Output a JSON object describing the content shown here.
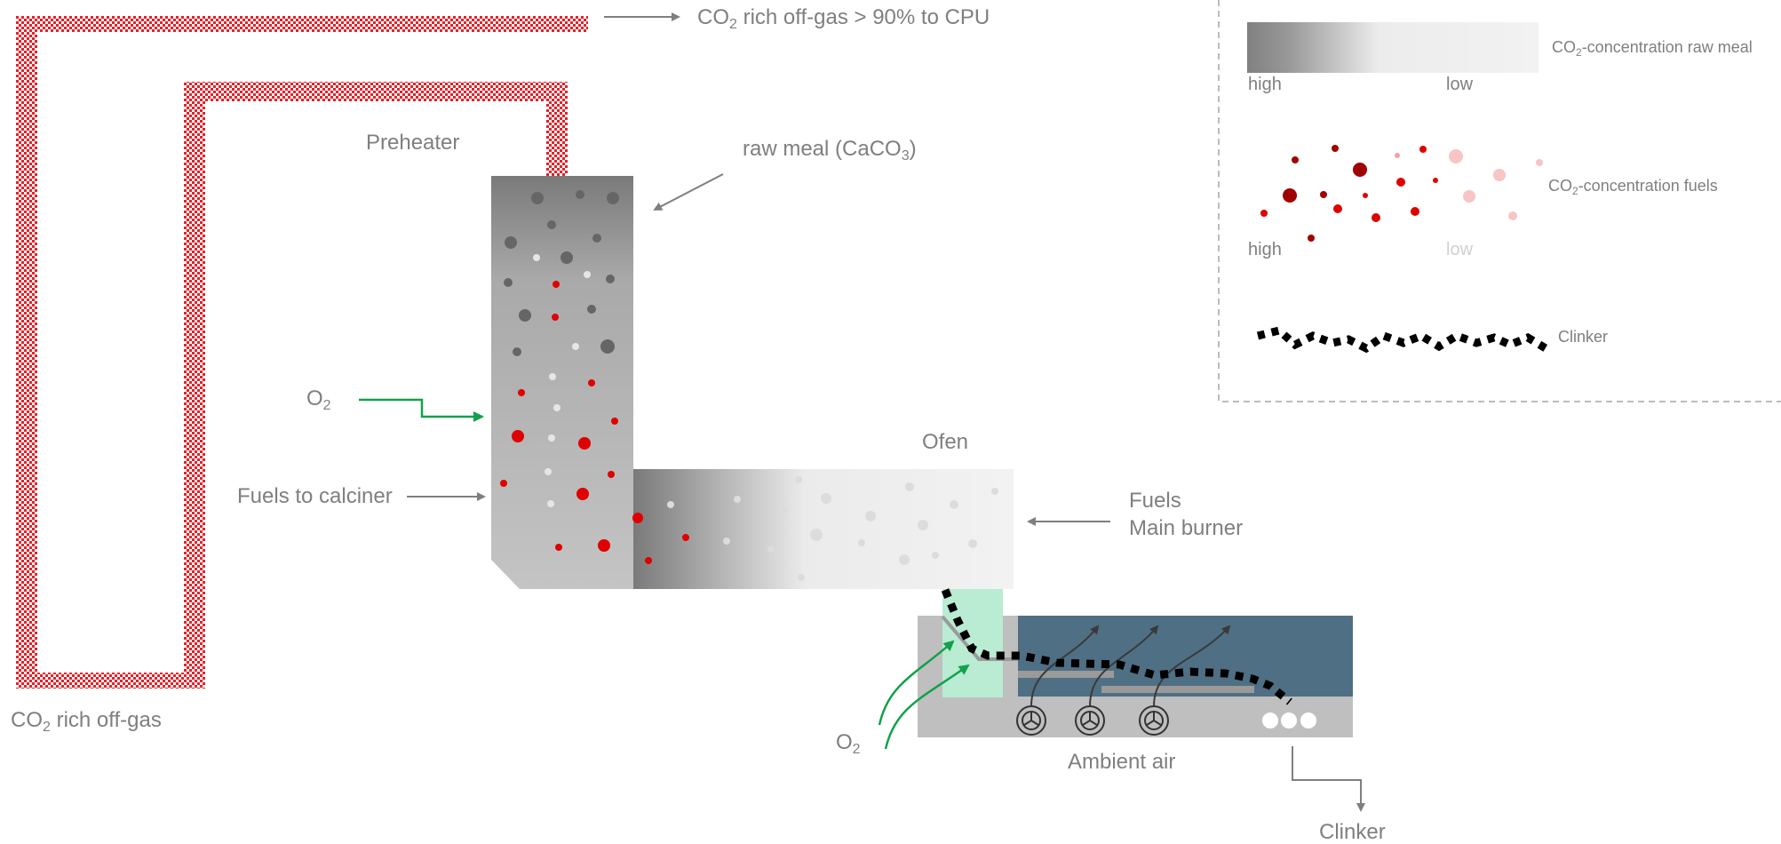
{
  "labels": {
    "offgas_top_main": "CO",
    "offgas_top_sub": "2",
    "offgas_top_rest": " rich off-gas > 90% to CPU",
    "preheater": "Preheater",
    "raw_meal_main": "raw meal (CaCO",
    "raw_meal_sub": "3",
    "raw_meal_rest": ")",
    "o2_left_main": "O",
    "o2_left_sub": "2",
    "fuels_calciner": "Fuels to calciner",
    "ofen": "Ofen",
    "fuels_main_line1": "Fuels",
    "fuels_main_line2": "Main burner",
    "offgas_bottom_main": "CO",
    "offgas_bottom_sub": "2",
    "offgas_bottom_rest": " rich off-gas",
    "o2_bottom_main": "O",
    "o2_bottom_sub": "2",
    "ambient_air": "Ambient air",
    "clinker_out": "Clinker"
  },
  "legend": {
    "raw_meal_main": "CO",
    "raw_meal_sub": "2",
    "raw_meal_rest": "-concentration raw meal",
    "raw_high": "high",
    "raw_low": "low",
    "fuels_main": "CO",
    "fuels_sub": "2",
    "fuels_rest": "-concentration fuels",
    "fuels_high": "high",
    "fuels_low": "low",
    "clinker": "Clinker"
  },
  "colors": {
    "pipe_red": "#e0232a",
    "fuel_red": "#e00000",
    "dark_red": "#a00000",
    "arrow_grey": "#7f7f7f",
    "arrow_green": "#12a14b",
    "cooler_blue": "#4f6f84",
    "cooler_grey": "#bfbfbf",
    "mint": "#b9ecd2",
    "clinker_black": "#000000"
  }
}
